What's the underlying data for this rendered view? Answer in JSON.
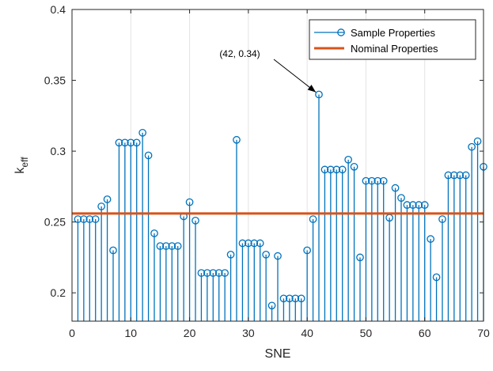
{
  "chart_data": {
    "type": "stem",
    "xlabel": "SNE",
    "ylabel_main": "k",
    "ylabel_sub": "eff",
    "xlim": [
      0,
      70
    ],
    "ylim": [
      0.18,
      0.4
    ],
    "xticks": [
      0,
      10,
      20,
      30,
      40,
      50,
      60,
      70
    ],
    "yticks": [
      0.2,
      0.25,
      0.3,
      0.35,
      0.4
    ],
    "ytick_labels": [
      "0.2",
      "0.25",
      "0.3",
      "0.35",
      "0.4"
    ],
    "grid": "vertical",
    "legend_position": "top-right",
    "series": [
      {
        "name": "Sample Properties",
        "color": "#0072BD",
        "x": [
          1,
          2,
          3,
          4,
          5,
          6,
          7,
          8,
          9,
          10,
          11,
          12,
          13,
          14,
          15,
          16,
          17,
          18,
          19,
          20,
          21,
          22,
          23,
          24,
          25,
          26,
          27,
          28,
          29,
          30,
          31,
          32,
          33,
          34,
          35,
          36,
          37,
          38,
          39,
          40,
          41,
          42,
          43,
          44,
          45,
          46,
          47,
          48,
          49,
          50,
          51,
          52,
          53,
          54,
          55,
          56,
          57,
          58,
          59,
          60,
          61,
          62,
          63,
          64,
          65,
          66,
          67,
          68,
          69,
          70
        ],
        "values": [
          0.252,
          0.252,
          0.252,
          0.252,
          0.261,
          0.266,
          0.23,
          0.306,
          0.306,
          0.306,
          0.306,
          0.313,
          0.297,
          0.242,
          0.233,
          0.233,
          0.233,
          0.233,
          0.254,
          0.264,
          0.251,
          0.214,
          0.214,
          0.214,
          0.214,
          0.214,
          0.227,
          0.308,
          0.235,
          0.235,
          0.235,
          0.235,
          0.227,
          0.191,
          0.226,
          0.196,
          0.196,
          0.196,
          0.196,
          0.23,
          0.252,
          0.34,
          0.287,
          0.287,
          0.287,
          0.287,
          0.294,
          0.289,
          0.225,
          0.279,
          0.279,
          0.279,
          0.279,
          0.253,
          0.274,
          0.267,
          0.262,
          0.262,
          0.262,
          0.262,
          0.238,
          0.211,
          0.252,
          0.283,
          0.283,
          0.283,
          0.283,
          0.303,
          0.307,
          0.289
        ]
      },
      {
        "name": "Nominal Properties",
        "color": "#D95319",
        "value": 0.256
      }
    ],
    "annotation": {
      "text": "(42, 0.34)",
      "x": 42,
      "y": 0.34
    }
  }
}
